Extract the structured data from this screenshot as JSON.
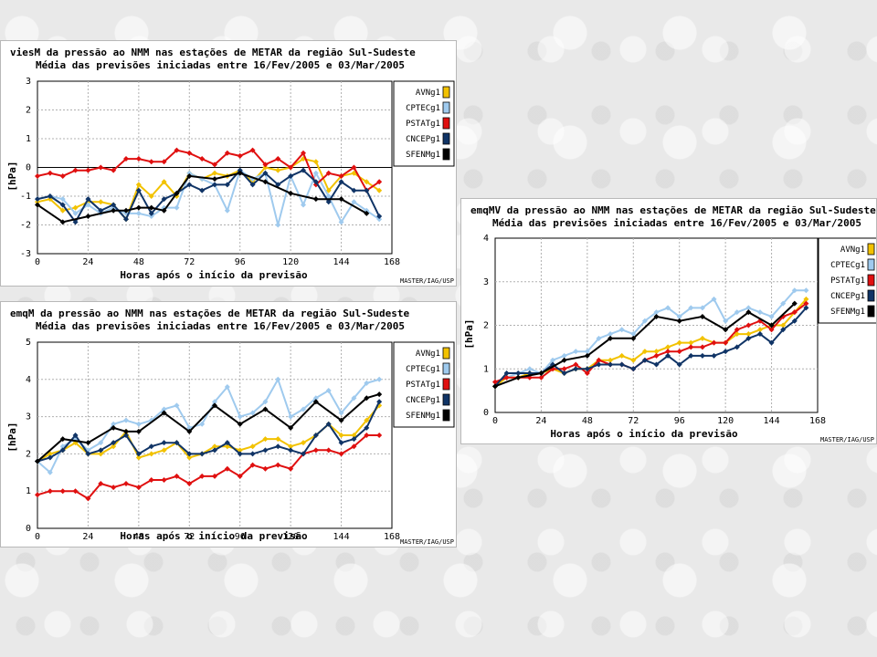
{
  "palette": {
    "AVN": "#f2c200",
    "CPTEC": "#9fcaee",
    "PSTAT": "#e01010",
    "CNCEP": "#103466",
    "SFENM": "#000000"
  },
  "charts": [
    {
      "id": "vies",
      "title": "viesM da pressão ao NMM nas estações de METAR da região Sul-Sudeste",
      "subtitle": "Média das previsões iniciadas entre 16/Fev/2005 e 03/Mar/2005",
      "ylabel": "[hPa]",
      "xlabel": "Horas após o início da previsão",
      "credit": "MASTER/IAG/USP"
    },
    {
      "id": "emq",
      "title": "emqM da pressão ao NMM nas estações de METAR da região Sul-Sudeste",
      "subtitle": "Média das previsões iniciadas entre 16/Fev/2005 e 03/Mar/2005",
      "ylabel": "[hPa]",
      "xlabel": "Horas após o início da previsão",
      "credit": "MASTER/IAG/USP"
    },
    {
      "id": "emqv",
      "title": "emqMV da pressão ao NMM nas estações de METAR da região Sul-Sudeste",
      "subtitle": "Média das previsões iniciadas entre 16/Fev/2005 e 03/Mar/2005",
      "ylabel": "[hPa]",
      "xlabel": "Horas após o início da previsão",
      "credit": "MASTER/IAG/USP"
    }
  ],
  "chart_data": [
    {
      "type": "line",
      "title": "viesM da pressão ao NMM nas estações de METAR da região Sul-Sudeste",
      "subtitle": "Média das previsões iniciadas entre 16/Fev/2005 e 03/Mar/2005",
      "xlabel": "Horas após o início da previsão",
      "ylabel": "[hPa]",
      "xlim": [
        0,
        168
      ],
      "ylim": [
        -3,
        3
      ],
      "xticks": [
        0,
        24,
        48,
        72,
        96,
        120,
        144,
        168
      ],
      "yticks": [
        -3,
        -2,
        -1,
        0,
        1,
        2,
        3
      ],
      "grid": true,
      "legend_position": "right",
      "series": [
        {
          "name": "AVNg1",
          "color_key": "AVN",
          "x": [
            0,
            6,
            12,
            18,
            24,
            30,
            36,
            42,
            48,
            54,
            60,
            66,
            72,
            78,
            84,
            90,
            96,
            102,
            108,
            114,
            120,
            126,
            132,
            138,
            144,
            150,
            156,
            162
          ],
          "y": [
            -1.2,
            -1.1,
            -1.5,
            -1.4,
            -1.2,
            -1.2,
            -1.3,
            -1.8,
            -0.6,
            -1.0,
            -0.5,
            -1.0,
            -0.2,
            -0.4,
            -0.2,
            -0.3,
            -0.1,
            -0.5,
            0.0,
            -0.1,
            0.0,
            0.3,
            0.2,
            -0.8,
            -0.3,
            -0.2,
            -0.5,
            -0.8
          ]
        },
        {
          "name": "CPTECg1",
          "color_key": "CPTEC",
          "x": [
            0,
            6,
            12,
            18,
            24,
            30,
            36,
            42,
            48,
            54,
            60,
            66,
            72,
            78,
            84,
            90,
            96,
            102,
            108,
            114,
            120,
            126,
            132,
            138,
            144,
            150,
            156,
            162
          ],
          "y": [
            -1.1,
            -1.0,
            -1.1,
            -1.6,
            -1.3,
            -1.6,
            -1.4,
            -1.6,
            -1.6,
            -1.7,
            -1.4,
            -1.4,
            -0.2,
            -0.4,
            -0.6,
            -1.5,
            -0.1,
            -0.4,
            -0.2,
            -2.0,
            -0.3,
            -1.3,
            -0.2,
            -1.0,
            -1.9,
            -1.2,
            -1.5,
            -1.8
          ]
        },
        {
          "name": "PSTATg1",
          "color_key": "PSTAT",
          "x": [
            0,
            6,
            12,
            18,
            24,
            30,
            36,
            42,
            48,
            54,
            60,
            66,
            72,
            78,
            84,
            90,
            96,
            102,
            108,
            114,
            120,
            126,
            132,
            138,
            144,
            150,
            156,
            162
          ],
          "y": [
            -0.3,
            -0.2,
            -0.3,
            -0.1,
            -0.1,
            0.0,
            -0.1,
            0.3,
            0.3,
            0.2,
            0.2,
            0.6,
            0.5,
            0.3,
            0.1,
            0.5,
            0.4,
            0.6,
            0.1,
            0.3,
            0.0,
            0.5,
            -0.6,
            -0.2,
            -0.3,
            0.0,
            -0.8,
            -0.5
          ]
        },
        {
          "name": "CNCEPg1",
          "color_key": "CNCEP",
          "x": [
            0,
            6,
            12,
            18,
            24,
            30,
            36,
            42,
            48,
            54,
            60,
            66,
            72,
            78,
            84,
            90,
            96,
            102,
            108,
            114,
            120,
            126,
            132,
            138,
            144,
            150,
            156,
            162
          ],
          "y": [
            -1.1,
            -1.0,
            -1.3,
            -1.9,
            -1.1,
            -1.5,
            -1.3,
            -1.8,
            -0.8,
            -1.6,
            -1.1,
            -0.9,
            -0.6,
            -0.8,
            -0.6,
            -0.6,
            -0.1,
            -0.6,
            -0.2,
            -0.6,
            -0.3,
            -0.1,
            -0.5,
            -1.2,
            -0.5,
            -0.8,
            -0.8,
            -1.7
          ]
        },
        {
          "name": "SFENMg1",
          "color_key": "SFENM",
          "x": [
            0,
            12,
            24,
            36,
            42,
            48,
            54,
            60,
            66,
            72,
            84,
            96,
            108,
            120,
            132,
            144,
            156
          ],
          "y": [
            -1.3,
            -1.9,
            -1.7,
            -1.5,
            -1.5,
            -1.4,
            -1.4,
            -1.5,
            -0.9,
            -0.3,
            -0.4,
            -0.2,
            -0.5,
            -0.9,
            -1.1,
            -1.1,
            -1.6
          ]
        }
      ]
    },
    {
      "type": "line",
      "title": "emqM da pressão ao NMM nas estações de METAR da região Sul-Sudeste",
      "subtitle": "Média das previsões iniciadas entre 16/Fev/2005 e 03/Mar/2005",
      "xlabel": "Horas após o início da previsão",
      "ylabel": "[hPa]",
      "xlim": [
        0,
        168
      ],
      "ylim": [
        0,
        5
      ],
      "xticks": [
        0,
        24,
        48,
        72,
        96,
        120,
        144,
        168
      ],
      "yticks": [
        0,
        1,
        2,
        3,
        4,
        5
      ],
      "grid": true,
      "legend_position": "right",
      "series": [
        {
          "name": "AVNg1",
          "color_key": "AVN",
          "x": [
            0,
            6,
            12,
            18,
            24,
            30,
            36,
            42,
            48,
            54,
            60,
            66,
            72,
            78,
            84,
            90,
            96,
            102,
            108,
            114,
            120,
            126,
            132,
            138,
            144,
            150,
            156,
            162
          ],
          "y": [
            1.8,
            2.0,
            2.1,
            2.3,
            2.0,
            2.0,
            2.2,
            2.6,
            1.9,
            2.0,
            2.1,
            2.3,
            1.9,
            2.0,
            2.2,
            2.2,
            2.1,
            2.2,
            2.4,
            2.4,
            2.2,
            2.3,
            2.5,
            2.8,
            2.5,
            2.5,
            2.9,
            3.3
          ]
        },
        {
          "name": "CPTECg1",
          "color_key": "CPTEC",
          "x": [
            0,
            6,
            12,
            18,
            24,
            30,
            36,
            42,
            48,
            54,
            60,
            66,
            72,
            78,
            84,
            90,
            96,
            102,
            108,
            114,
            120,
            126,
            132,
            138,
            144,
            150,
            156,
            162
          ],
          "y": [
            1.8,
            1.5,
            2.2,
            2.4,
            2.1,
            2.3,
            2.8,
            2.9,
            2.8,
            2.9,
            3.2,
            3.3,
            2.7,
            2.8,
            3.4,
            3.8,
            3.0,
            3.1,
            3.4,
            4.0,
            3.0,
            3.2,
            3.5,
            3.7,
            3.1,
            3.5,
            3.9,
            4.0
          ]
        },
        {
          "name": "PSTATg1",
          "color_key": "PSTAT",
          "x": [
            0,
            6,
            12,
            18,
            24,
            30,
            36,
            42,
            48,
            54,
            60,
            66,
            72,
            78,
            84,
            90,
            96,
            102,
            108,
            114,
            120,
            126,
            132,
            138,
            144,
            150,
            156,
            162
          ],
          "y": [
            0.9,
            1.0,
            1.0,
            1.0,
            0.8,
            1.2,
            1.1,
            1.2,
            1.1,
            1.3,
            1.3,
            1.4,
            1.2,
            1.4,
            1.4,
            1.6,
            1.4,
            1.7,
            1.6,
            1.7,
            1.6,
            2.0,
            2.1,
            2.1,
            2.0,
            2.2,
            2.5,
            2.5
          ]
        },
        {
          "name": "CNCEPg1",
          "color_key": "CNCEP",
          "x": [
            0,
            6,
            12,
            18,
            24,
            30,
            36,
            42,
            48,
            54,
            60,
            66,
            72,
            78,
            84,
            90,
            96,
            102,
            108,
            114,
            120,
            126,
            132,
            138,
            144,
            150,
            156,
            162
          ],
          "y": [
            1.8,
            1.9,
            2.1,
            2.5,
            2.0,
            2.1,
            2.3,
            2.5,
            2.0,
            2.2,
            2.3,
            2.3,
            2.0,
            2.0,
            2.1,
            2.3,
            2.0,
            2.0,
            2.1,
            2.2,
            2.1,
            2.0,
            2.5,
            2.8,
            2.3,
            2.4,
            2.7,
            3.4
          ]
        },
        {
          "name": "SFENMg1",
          "color_key": "SFENM",
          "x": [
            0,
            12,
            24,
            36,
            42,
            48,
            60,
            72,
            84,
            96,
            108,
            120,
            132,
            144,
            156,
            162
          ],
          "y": [
            1.8,
            2.4,
            2.3,
            2.7,
            2.6,
            2.6,
            3.1,
            2.6,
            3.3,
            2.8,
            3.2,
            2.7,
            3.4,
            2.9,
            3.5,
            3.6
          ]
        }
      ]
    },
    {
      "type": "line",
      "title": "emqMV da pressão ao NMM nas estações de METAR da região Sul-Sudeste",
      "subtitle": "Média das previsões iniciadas entre 16/Fev/2005 e 03/Mar/2005",
      "xlabel": "Horas após o início da previsão",
      "ylabel": "[hPa]",
      "xlim": [
        0,
        168
      ],
      "ylim": [
        0,
        4
      ],
      "xticks": [
        0,
        24,
        48,
        72,
        96,
        120,
        144,
        168
      ],
      "yticks": [
        0,
        1,
        2,
        3,
        4
      ],
      "grid": true,
      "legend_position": "right",
      "series": [
        {
          "name": "AVNg1",
          "color_key": "AVN",
          "x": [
            0,
            6,
            12,
            18,
            24,
            30,
            36,
            42,
            48,
            54,
            60,
            66,
            72,
            78,
            84,
            90,
            96,
            102,
            108,
            114,
            120,
            126,
            132,
            138,
            144,
            150,
            156,
            162
          ],
          "y": [
            0.6,
            0.8,
            0.8,
            0.9,
            0.9,
            1.0,
            0.9,
            1.0,
            1.0,
            1.2,
            1.2,
            1.3,
            1.2,
            1.4,
            1.4,
            1.5,
            1.6,
            1.6,
            1.7,
            1.6,
            1.6,
            1.8,
            1.8,
            1.9,
            2.0,
            2.0,
            2.3,
            2.6
          ]
        },
        {
          "name": "CPTECg1",
          "color_key": "CPTEC",
          "x": [
            0,
            6,
            12,
            18,
            24,
            30,
            36,
            42,
            48,
            54,
            60,
            66,
            72,
            78,
            84,
            90,
            96,
            102,
            108,
            114,
            120,
            126,
            132,
            138,
            144,
            150,
            156,
            162
          ],
          "y": [
            0.7,
            0.8,
            0.9,
            1.0,
            0.9,
            1.2,
            1.3,
            1.4,
            1.4,
            1.7,
            1.8,
            1.9,
            1.8,
            2.1,
            2.3,
            2.4,
            2.2,
            2.4,
            2.4,
            2.6,
            2.1,
            2.3,
            2.4,
            2.3,
            2.2,
            2.5,
            2.8,
            2.8
          ]
        },
        {
          "name": "PSTATg1",
          "color_key": "PSTAT",
          "x": [
            0,
            6,
            12,
            18,
            24,
            30,
            36,
            42,
            48,
            54,
            60,
            66,
            72,
            78,
            84,
            90,
            96,
            102,
            108,
            114,
            120,
            126,
            132,
            138,
            144,
            150,
            156,
            162
          ],
          "y": [
            0.7,
            0.8,
            0.8,
            0.8,
            0.8,
            1.0,
            1.0,
            1.1,
            0.9,
            1.2,
            1.1,
            1.1,
            1.0,
            1.2,
            1.3,
            1.4,
            1.4,
            1.5,
            1.5,
            1.6,
            1.6,
            1.9,
            2.0,
            2.1,
            1.9,
            2.2,
            2.3,
            2.5
          ]
        },
        {
          "name": "CNCEPg1",
          "color_key": "CNCEP",
          "x": [
            0,
            6,
            12,
            18,
            24,
            30,
            36,
            42,
            48,
            54,
            60,
            66,
            72,
            78,
            84,
            90,
            96,
            102,
            108,
            114,
            120,
            126,
            132,
            138,
            144,
            150,
            156,
            162
          ],
          "y": [
            0.6,
            0.9,
            0.9,
            0.9,
            0.9,
            1.1,
            0.9,
            1.0,
            1.0,
            1.1,
            1.1,
            1.1,
            1.0,
            1.2,
            1.1,
            1.3,
            1.1,
            1.3,
            1.3,
            1.3,
            1.4,
            1.5,
            1.7,
            1.8,
            1.6,
            1.9,
            2.1,
            2.4
          ]
        },
        {
          "name": "SFENMg1",
          "color_key": "SFENM",
          "x": [
            0,
            12,
            24,
            36,
            48,
            60,
            72,
            84,
            96,
            108,
            120,
            132,
            144,
            156
          ],
          "y": [
            0.6,
            0.8,
            0.9,
            1.2,
            1.3,
            1.7,
            1.7,
            2.2,
            2.1,
            2.2,
            1.9,
            2.3,
            2.0,
            2.5
          ]
        }
      ]
    }
  ]
}
